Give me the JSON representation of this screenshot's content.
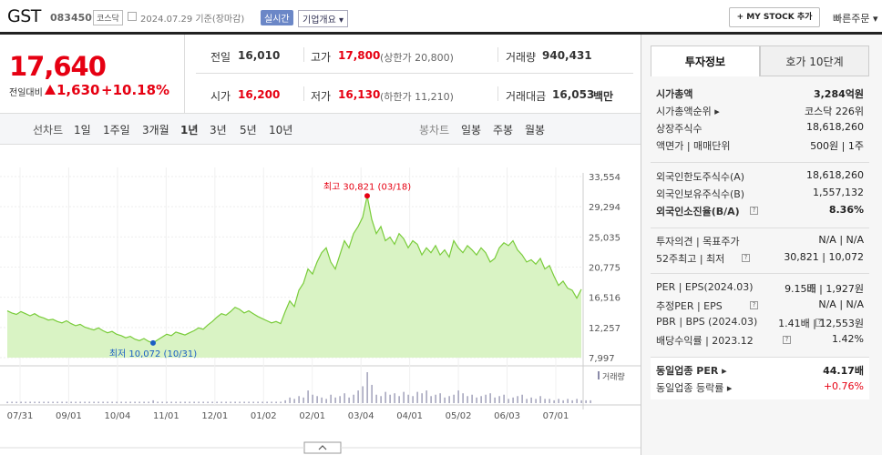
{
  "header": {
    "stock_name": "GST",
    "stock_code": "083450",
    "market": "코스닥",
    "date_text": "2024.07.29  기준(장마감)",
    "realtime_label": "실시간",
    "company_label": "기업개요 ▾",
    "mystock_label": "+ MY STOCK 추가",
    "quick_order_label": "빠른주문 ▾"
  },
  "price": {
    "current": "17,640",
    "change_label": "전일대비",
    "change": "1,630",
    "change_pct": "+10.18%"
  },
  "quote": {
    "prev_label": "전일",
    "prev": "16,010",
    "high_label": "고가",
    "high": "17,800",
    "upper_limit": "(상한가 20,800)",
    "volume_label": "거래량",
    "volume": "940,431",
    "open_label": "시가",
    "open": "16,200",
    "low_label": "저가",
    "low": "16,130",
    "lower_limit": "(하한가 11,210)",
    "amount_label": "거래대금",
    "amount": "16,053",
    "amount_unit": "백만"
  },
  "periods": {
    "line_label": "선차트",
    "items": [
      "1일",
      "1주일",
      "3개월",
      "1년",
      "3년",
      "5년",
      "10년"
    ],
    "selected": "1년",
    "candle_label": "봉차트",
    "candles": [
      "일봉",
      "주봉",
      "월봉"
    ]
  },
  "chart_data": {
    "type": "area",
    "x_ticks": [
      "07/31",
      "09/01",
      "10/04",
      "11/01",
      "12/01",
      "01/02",
      "02/01",
      "03/04",
      "04/01",
      "05/02",
      "06/03",
      "07/01"
    ],
    "y_ticks": [
      "33,554",
      "29,294",
      "25,035",
      "20,775",
      "16,516",
      "12,257",
      "7,997"
    ],
    "ylim": [
      7997,
      33554
    ],
    "high_label": "최고 30,821 (03/18)",
    "low_label": "최저 10,072 (10/31)",
    "volume_label": "거래량",
    "prices": [
      14600,
      14300,
      14100,
      14500,
      14200,
      13900,
      14200,
      13800,
      13600,
      13300,
      13400,
      13100,
      12900,
      13200,
      12800,
      12500,
      12700,
      12300,
      12100,
      11900,
      12200,
      11800,
      11500,
      11700,
      11300,
      11100,
      10800,
      11000,
      10600,
      10400,
      10700,
      10300,
      10072,
      10500,
      10900,
      11300,
      11100,
      11600,
      11400,
      11200,
      11500,
      11800,
      12200,
      12000,
      12600,
      13100,
      13700,
      14200,
      14000,
      14500,
      15100,
      14800,
      14300,
      14600,
      14200,
      13800,
      13500,
      13200,
      12900,
      13100,
      12800,
      14500,
      16000,
      15200,
      17500,
      18500,
      20500,
      19800,
      21500,
      22800,
      23500,
      21500,
      20500,
      22500,
      24500,
      23500,
      25500,
      26500,
      27800,
      30821,
      27500,
      25500,
      26500,
      24500,
      25000,
      24000,
      25500,
      24800,
      23500,
      24500,
      24000,
      22500,
      23500,
      22800,
      23800,
      22500,
      23200,
      22200,
      24500,
      23500,
      22800,
      23800,
      23200,
      22500,
      23500,
      22800,
      21500,
      22000,
      23500,
      24200,
      23800,
      24500,
      23200,
      22500,
      21500,
      21800,
      21200,
      22000,
      20500,
      21000,
      19500,
      18200,
      18800,
      17800,
      17500,
      16400,
      17640
    ],
    "volumes": [
      1,
      1,
      1,
      1,
      1,
      1,
      1,
      1,
      1,
      1,
      1,
      1,
      1,
      1,
      1,
      1,
      1,
      1,
      1,
      1,
      1,
      1,
      1,
      1,
      1,
      1,
      1,
      1,
      1,
      1,
      1,
      1,
      2,
      1,
      1,
      1,
      1,
      1,
      1,
      1,
      1,
      1,
      1,
      1,
      1,
      1,
      1,
      1,
      1,
      1,
      1,
      1,
      1,
      1,
      1,
      1,
      1,
      1,
      1,
      1,
      1,
      2,
      4,
      3,
      5,
      4,
      9,
      6,
      5,
      4,
      3,
      6,
      4,
      5,
      7,
      4,
      6,
      9,
      12,
      22,
      13,
      6,
      5,
      8,
      6,
      7,
      5,
      8,
      6,
      5,
      8,
      7,
      9,
      5,
      6,
      7,
      4,
      5,
      6,
      9,
      7,
      5,
      6,
      4,
      5,
      6,
      7,
      4,
      5,
      6,
      3,
      4,
      5,
      6,
      3,
      4,
      3,
      5,
      3,
      3,
      2,
      3,
      2,
      3,
      2,
      3,
      2,
      2,
      2
    ]
  },
  "invest": {
    "tab_invest": "투자정보",
    "tab_hoga": "호가 10단계",
    "rows1": [
      {
        "l": "시가총액",
        "r": "3,284억원",
        "bold": true
      },
      {
        "l": "시가총액순위 ▸",
        "r": "코스닥 226위"
      },
      {
        "l": "상장주식수",
        "r": "18,618,260"
      },
      {
        "l": "액면가 | 매매단위",
        "r": "500원 | 1주"
      }
    ],
    "rows2": [
      {
        "l": "외국인한도주식수(A)",
        "r": "18,618,260"
      },
      {
        "l": "외국인보유주식수(B)",
        "r": "1,557,132"
      },
      {
        "l": "외국인소진율(B/A)",
        "r": "8.36%",
        "bold": true,
        "help": true
      }
    ],
    "rows3": [
      {
        "l": "투자의견 | 목표주가",
        "r": "N/A | N/A"
      },
      {
        "l": "52주최고 | 최저",
        "r": "30,821 | 10,072",
        "help": true
      }
    ],
    "rows4": [
      {
        "l": "PER | EPS(2024.03)",
        "r": "9.15배 | 1,927원",
        "help": true
      },
      {
        "l": "추정PER | EPS",
        "r": "N/A | N/A",
        "help": true
      },
      {
        "l": "PBR | BPS (2024.03)",
        "r": "1.41배 | 12,553원",
        "help": true
      },
      {
        "l": "배당수익률 | 2023.12",
        "r": "1.42%",
        "help": true
      }
    ],
    "rows5": [
      {
        "l": "동일업종 PER ▸",
        "r": "44.17배",
        "bold": true
      },
      {
        "l": "동일업종 등락률 ▸",
        "r": "+0.76%",
        "red": true
      }
    ]
  },
  "colors": {
    "up": "#e60012",
    "chart_line": "#79cc3a",
    "chart_fill": "#d9f3c4",
    "low_marker": "#1a5ec4"
  }
}
